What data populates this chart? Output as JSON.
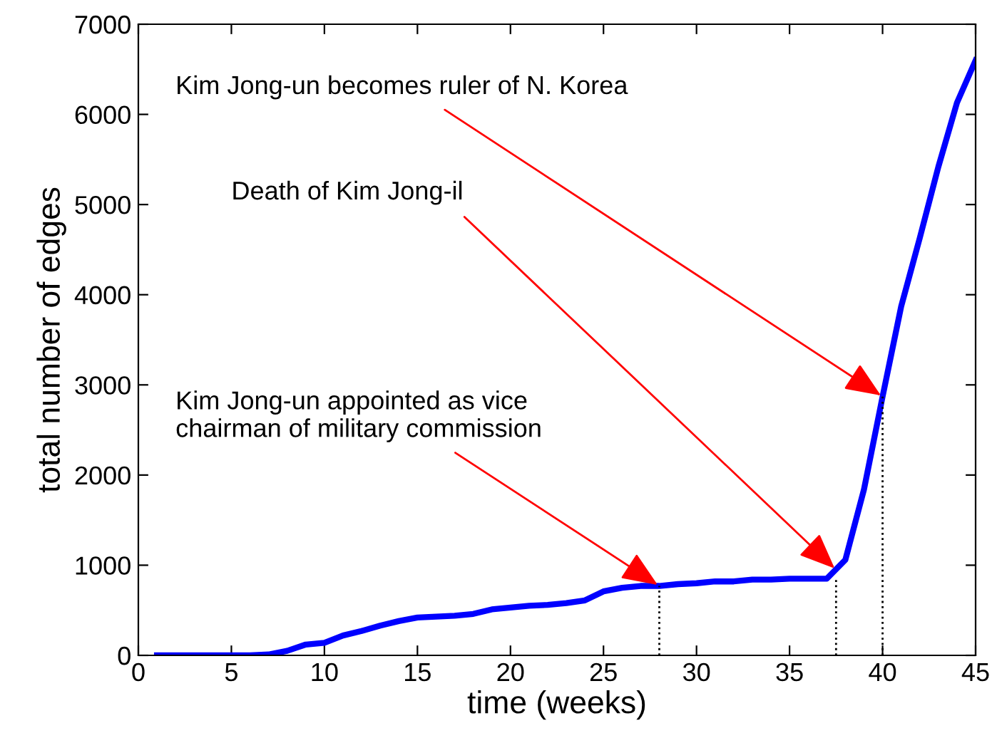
{
  "chart_data": {
    "type": "line",
    "xlabel": "time (weeks)",
    "ylabel": "total number of edges",
    "x": [
      1,
      2,
      3,
      4,
      5,
      6,
      7,
      8,
      9,
      10,
      11,
      12,
      13,
      14,
      15,
      16,
      17,
      18,
      19,
      20,
      21,
      22,
      23,
      24,
      25,
      26,
      27,
      28,
      29,
      30,
      31,
      32,
      33,
      34,
      35,
      36,
      37,
      38,
      39,
      40,
      41,
      42,
      43,
      44,
      45
    ],
    "series": [
      {
        "color": "#0000ff",
        "line_style": "solid",
        "values": [
          0,
          0,
          0,
          0,
          0,
          0,
          10,
          50,
          120,
          140,
          220,
          270,
          330,
          380,
          420,
          430,
          440,
          460,
          510,
          530,
          550,
          560,
          580,
          610,
          710,
          750,
          770,
          770,
          790,
          800,
          820,
          820,
          840,
          840,
          850,
          850,
          850,
          1060,
          1840,
          2870,
          3870,
          4630,
          5420,
          6130,
          6600
        ]
      },
      {
        "color": "#000000",
        "line_style": "dotted",
        "x": [
          28,
          28
        ],
        "values": [
          0,
          770
        ]
      },
      {
        "color": "#000000",
        "line_style": "dotted",
        "x": [
          37.5,
          37.5
        ],
        "values": [
          0,
          850
        ]
      },
      {
        "color": "#000000",
        "line_style": "dotted",
        "x": [
          40,
          40
        ],
        "values": [
          0,
          2870
        ]
      }
    ],
    "xlim": [
      0,
      45
    ],
    "xticks": [
      0,
      5,
      10,
      15,
      20,
      25,
      30,
      35,
      40,
      45
    ],
    "ylim": [
      0,
      7000
    ],
    "yticks": [
      0,
      1000,
      2000,
      3000,
      4000,
      5000,
      6000,
      7000
    ],
    "grid": false,
    "legend": false,
    "marker": "none",
    "annotations": [
      {
        "text": "Kim Jong-un becomes ruler of N. Korea",
        "x": 40,
        "y": 2870
      },
      {
        "text": "Death of Kim Jong-il",
        "x": 37.5,
        "y": 950
      },
      {
        "text": "Kim Jong-un appointed as vice\nchairman of military commission",
        "x": 28,
        "y": 770
      }
    ]
  }
}
